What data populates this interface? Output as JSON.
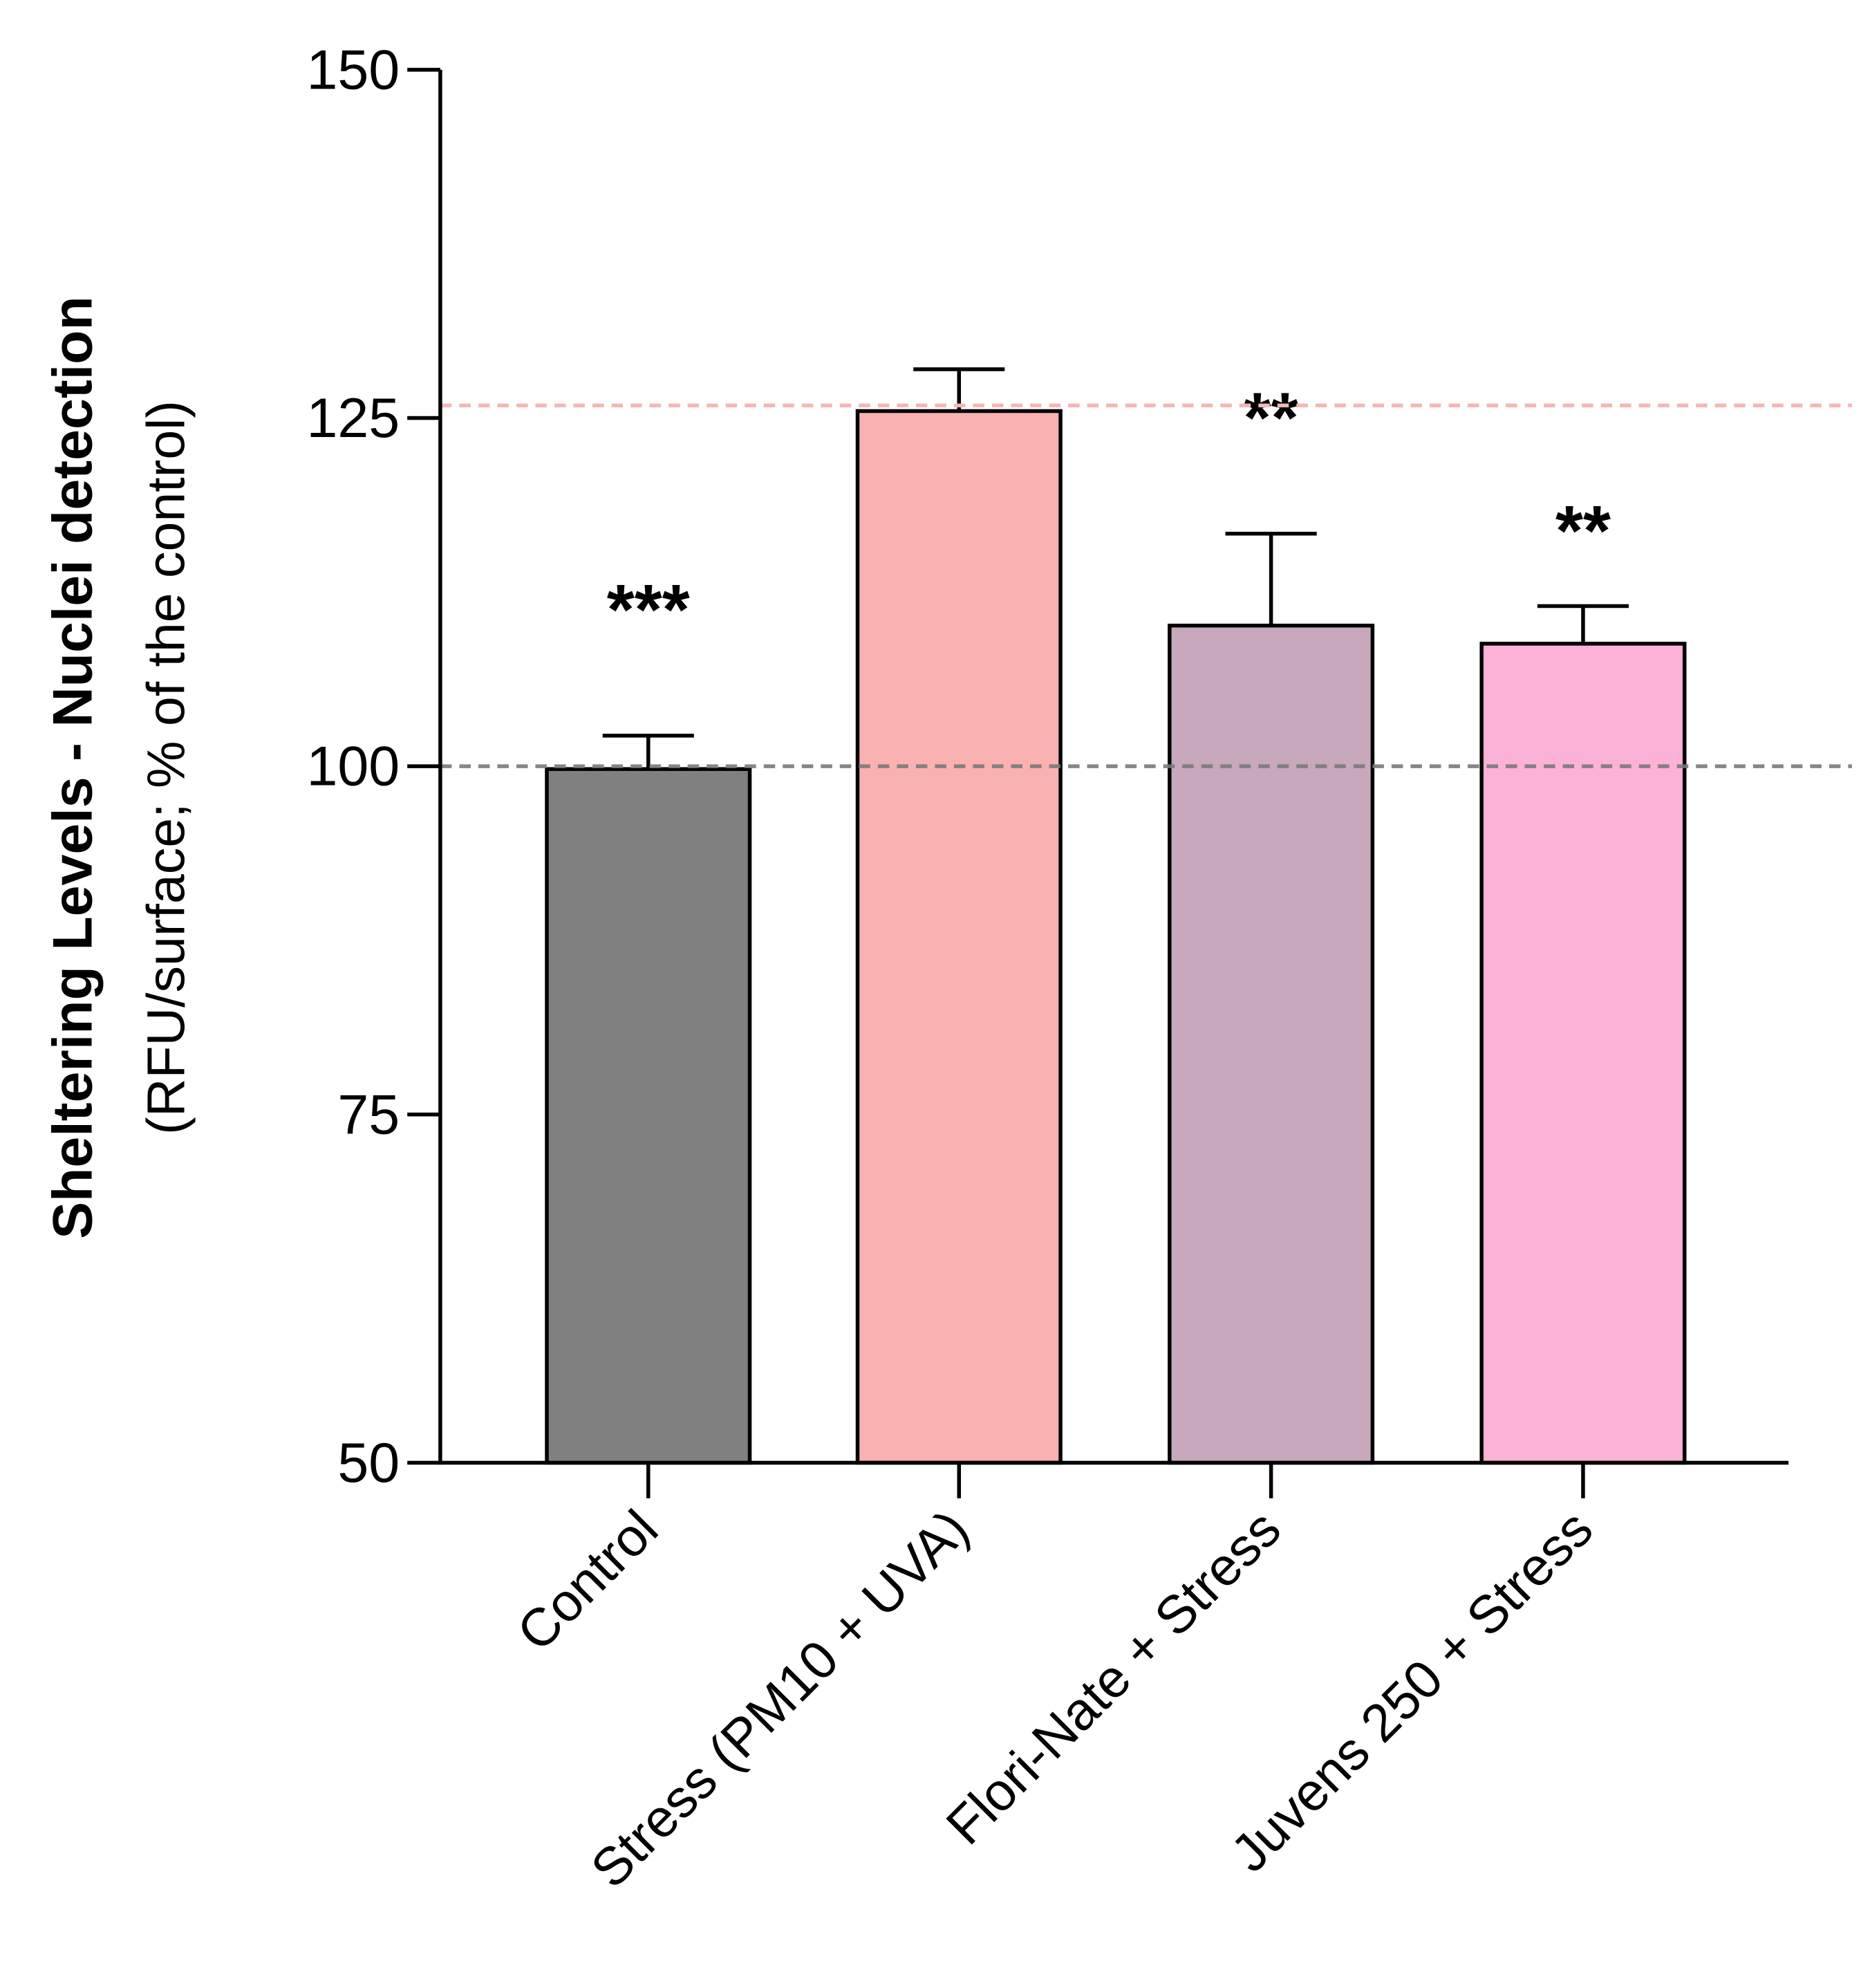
{
  "chart_data": {
    "type": "bar",
    "title": "",
    "ylabel": "Sheltering Levels - Nuclei detection",
    "ylabel_sub": "(RFU/surface; % of the control)",
    "xlabel": "",
    "ylim": [
      50,
      150
    ],
    "yticks": [
      50,
      75,
      100,
      125,
      150
    ],
    "categories": [
      "Control",
      "Stress (PM10 + UVA)",
      "Flori-Nate + Stress",
      "Juvens 250 + Stress"
    ],
    "values": [
      99.8,
      125.5,
      110.1,
      108.8
    ],
    "errors": [
      2.4,
      3.0,
      6.6,
      2.7
    ],
    "colors": [
      "#808080",
      "#FAB1B1",
      "#C8A8BC",
      "#FCB1D6"
    ],
    "significance": [
      "***",
      "",
      "**",
      "**"
    ],
    "reference_lines": [
      {
        "value": 100,
        "color": "#7A7A7A"
      },
      {
        "value": 125.9,
        "color": "#F6B6B6"
      }
    ],
    "grid": false
  }
}
